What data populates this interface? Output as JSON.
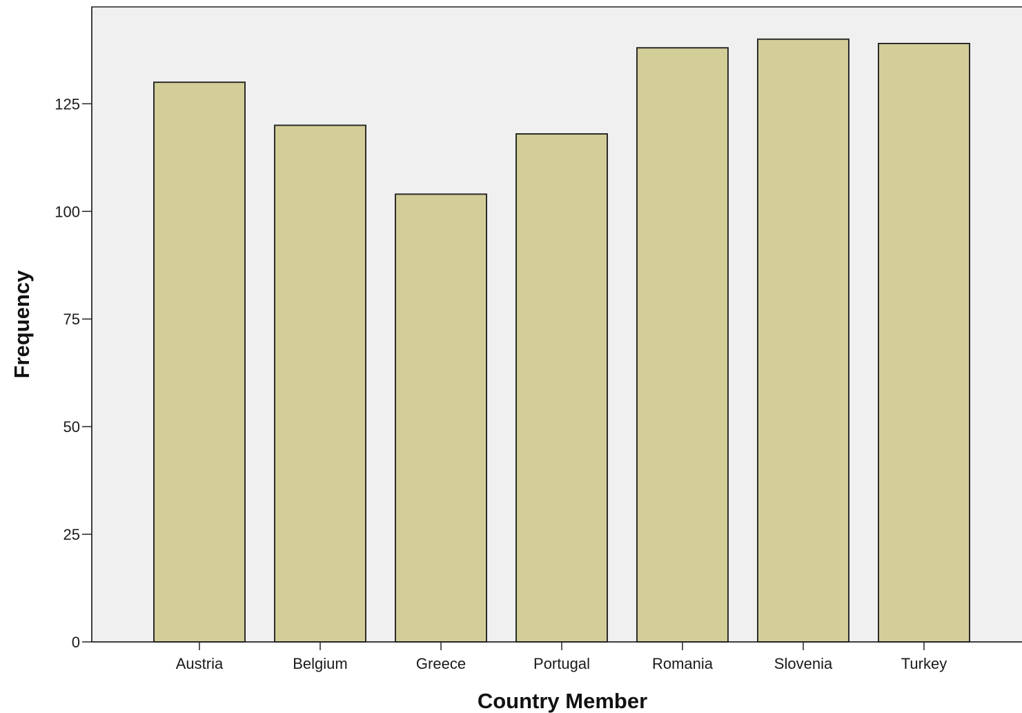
{
  "chart_data": {
    "type": "bar",
    "title": "",
    "xlabel": "Country Member",
    "ylabel": "Frequency",
    "categories": [
      "Austria",
      "Belgium",
      "Greece",
      "Portugal",
      "Romania",
      "Slovenia",
      "Turkey"
    ],
    "values": [
      130,
      120,
      104,
      118,
      138,
      140,
      139
    ],
    "ylim": [
      0,
      147.5
    ],
    "yticks": [
      0,
      25,
      50,
      75,
      100,
      125
    ],
    "ytick_labels": [
      "0",
      "25",
      "50",
      "75",
      "100",
      "125"
    ],
    "grid": false,
    "legend": "none",
    "colors": {
      "bar_fill": "#d3ce98",
      "bar_stroke": "#2b2b2b",
      "plot_background": "#f0f0f0",
      "axis": "#222222"
    }
  }
}
